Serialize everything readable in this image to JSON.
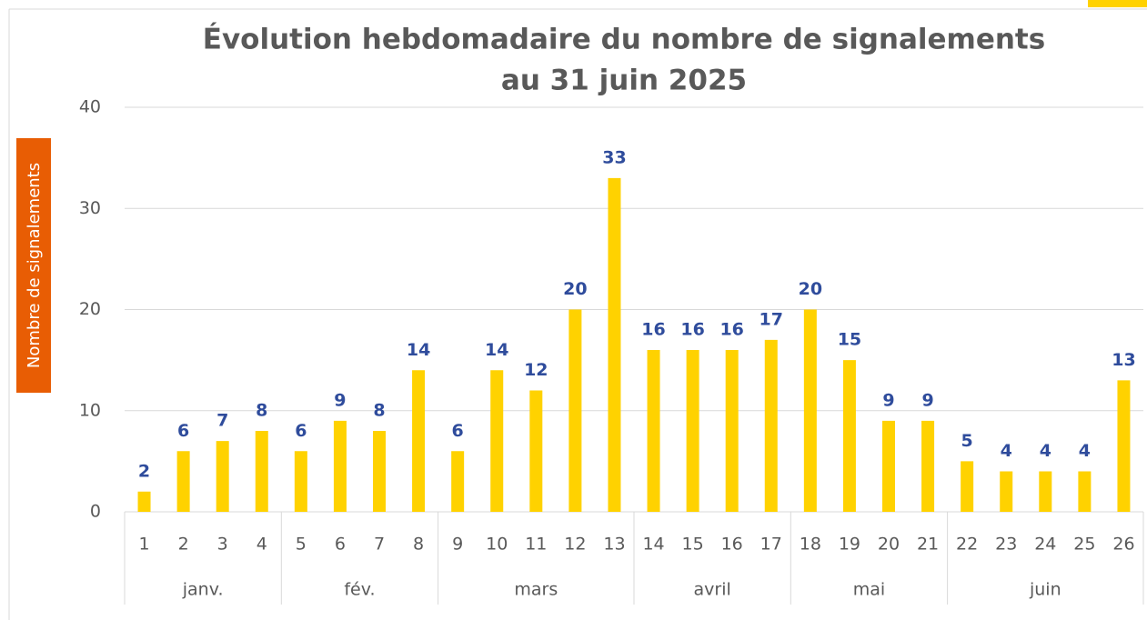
{
  "chart_data": {
    "type": "bar",
    "title": "Évolution hebdomadaire du nombre de signalements",
    "subtitle": "au 31 juin 2025",
    "y_label": "Nombre de signalements",
    "categories": [
      "1",
      "2",
      "3",
      "4",
      "5",
      "6",
      "7",
      "8",
      "9",
      "10",
      "11",
      "12",
      "13",
      "14",
      "15",
      "16",
      "17",
      "18",
      "19",
      "20",
      "21",
      "22",
      "23",
      "24",
      "25",
      "26"
    ],
    "values": [
      2,
      6,
      7,
      8,
      6,
      9,
      8,
      14,
      6,
      14,
      12,
      20,
      33,
      16,
      16,
      16,
      17,
      20,
      15,
      9,
      9,
      5,
      4,
      4,
      4,
      13
    ],
    "groups": [
      {
        "label": "janv.",
        "categories": [
          "1",
          "2",
          "3",
          "4"
        ]
      },
      {
        "label": "fév.",
        "categories": [
          "5",
          "6",
          "7",
          "8"
        ]
      },
      {
        "label": "mars",
        "categories": [
          "9",
          "10",
          "11",
          "12",
          "13"
        ]
      },
      {
        "label": "avril",
        "categories": [
          "14",
          "15",
          "16",
          "17"
        ]
      },
      {
        "label": "mai",
        "categories": [
          "18",
          "19",
          "20",
          "21"
        ]
      },
      {
        "label": "juin",
        "categories": [
          "22",
          "23",
          "24",
          "25",
          "26"
        ]
      }
    ],
    "color": "#ffd200",
    "ylim": [
      0,
      40
    ],
    "yticks": [
      0,
      10,
      20,
      30,
      40
    ],
    "grid": true
  }
}
